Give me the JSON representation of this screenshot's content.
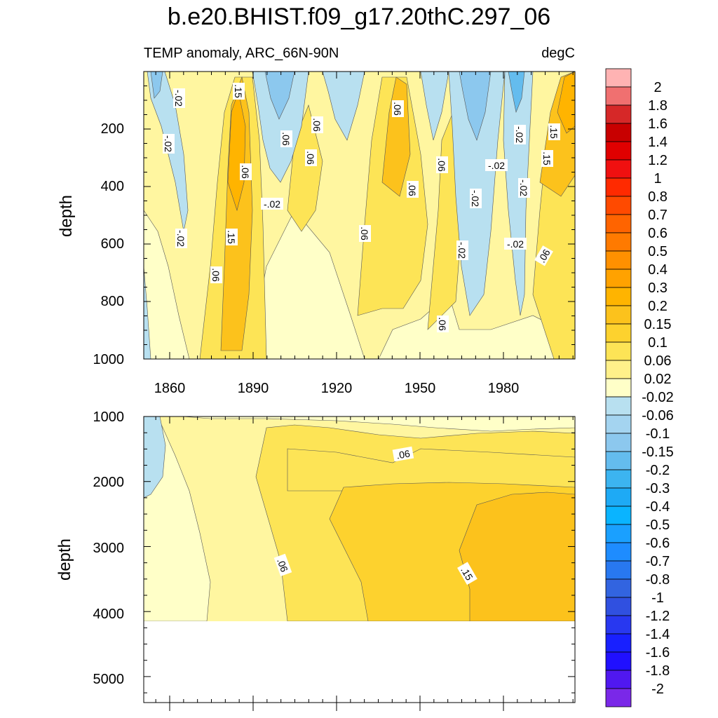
{
  "chart_data": {
    "type": "heatmap",
    "title": "b.e20.BHIST.f09_g17.20thC.297_06",
    "subtitle_left": "TEMP anomaly, ARC_66N-90N",
    "subtitle_right": "degC",
    "colorbar_labels": [
      "2",
      "1.8",
      "1.6",
      "1.4",
      "1.2",
      "1",
      "0.8",
      "0.7",
      "0.6",
      "0.5",
      "0.4",
      "0.3",
      "0.2",
      "0.15",
      "0.1",
      "0.06",
      "0.02",
      "-0.02",
      "-0.06",
      "-0.1",
      "-0.15",
      "-0.2",
      "-0.3",
      "-0.4",
      "-0.5",
      "-0.6",
      "-0.7",
      "-0.8",
      "-1",
      "-1.2",
      "-1.4",
      "-1.6",
      "-1.8",
      "-2"
    ],
    "colorbar_colors": [
      "#ffb3b3",
      "#f07070",
      "#d62828",
      "#c80000",
      "#e00000",
      "#f01010",
      "#ff2a00",
      "#ff4a00",
      "#ff6400",
      "#ff7a00",
      "#ff9000",
      "#ffa200",
      "#ffb400",
      "#fcc21c",
      "#fdd22e",
      "#fde456",
      "#fff08a",
      "#ffffc8",
      "#b8e0f0",
      "#a4d4f0",
      "#8cc8ee",
      "#64bcee",
      "#3cb4f0",
      "#1eaaf5",
      "#0ab4ff",
      "#1aa0ff",
      "#1e8cff",
      "#2878f0",
      "#3264e0",
      "#3050e0",
      "#2838f0",
      "#1820ff",
      "#2010ff",
      "#5018f0",
      "#7a28e8"
    ],
    "panels": [
      {
        "name": "upper",
        "ylabel": "depth",
        "ylim": [
          1000,
          0
        ],
        "y_ticks": [
          "200",
          "400",
          "600",
          "800",
          "1000"
        ],
        "x_ticks": [
          "1860",
          "1890",
          "1920",
          "1950",
          "1980"
        ],
        "contour_labels": [
          ".15",
          ".06",
          "-.02"
        ],
        "x": [
          1850,
          1855,
          1860,
          1865,
          1870,
          1875,
          1880,
          1885,
          1890,
          1895,
          1900,
          1905,
          1910,
          1915,
          1920,
          1925,
          1930,
          1935,
          1940,
          1945,
          1950,
          1955,
          1960,
          1965,
          1970,
          1975,
          1980,
          1985,
          1990,
          1995,
          2000,
          2005
        ],
        "depth": [
          10,
          100,
          200,
          300,
          400,
          500,
          600,
          700,
          800,
          900,
          1000
        ],
        "values_note": "anomaly field estimated from shading; warm tongue near 1880-1885 (0.1-0.2), cool (-0.02 to -0.1) columns near 1860, 1895-1905, 1965-1975, 1985; warmest near surface after 1990 (0.2-0.3)"
      },
      {
        "name": "lower",
        "ylabel": "depth",
        "ylim": [
          5400,
          1000
        ],
        "y_ticks": [
          "1000",
          "2000",
          "3000",
          "4000",
          "5000"
        ],
        "contour_labels": [
          ".06",
          ".06",
          ".15"
        ],
        "values_note": "slow warming with depth and time: 0.02 near 1850, 0.06-0.1 by 1890-1920, 0.1-0.15 after 1920 below 2000m, >0.15 after 1965 below 2500m; no data below ~4100m"
      }
    ]
  }
}
